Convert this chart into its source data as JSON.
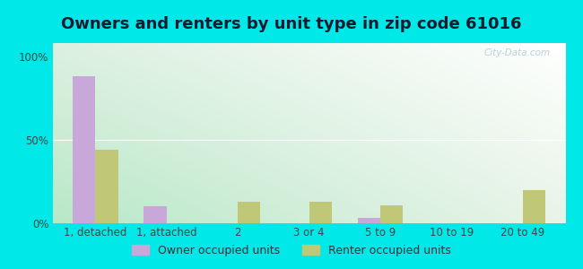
{
  "title": "Owners and renters by unit type in zip code 61016",
  "categories": [
    "1, detached",
    "1, attached",
    "2",
    "3 or 4",
    "5 to 9",
    "10 to 19",
    "20 to 49"
  ],
  "owner_values": [
    88,
    10,
    0,
    0,
    3,
    0,
    0
  ],
  "renter_values": [
    44,
    0,
    13,
    13,
    11,
    0,
    20
  ],
  "owner_color": "#c8a8d8",
  "renter_color": "#c0c878",
  "background_outer": "#00e8e8",
  "background_inner_topleft": "#ddf0e0",
  "background_inner_topright": "#ffffff",
  "background_inner_bottomleft": "#b8e8c8",
  "background_inner_bottomright": "#e8f4e8",
  "title_fontsize": 13,
  "tick_label_fontsize": 8.5,
  "legend_fontsize": 9,
  "ylabel_ticks": [
    "0%",
    "50%",
    "100%"
  ],
  "ytick_values": [
    0,
    50,
    100
  ],
  "ylim": [
    0,
    108
  ],
  "bar_width": 0.32,
  "watermark": "City-Data.com"
}
